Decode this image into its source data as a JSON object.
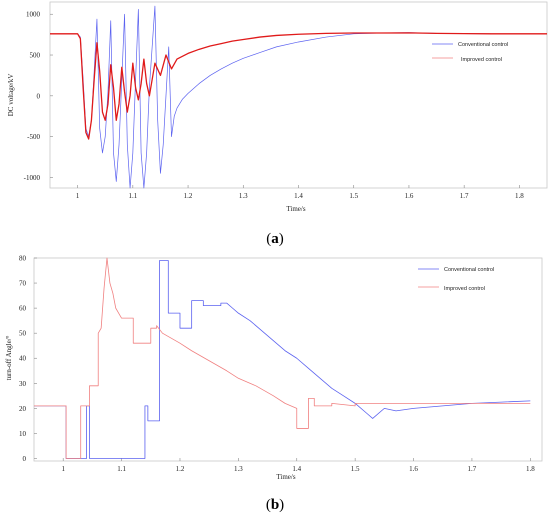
{
  "chart_data": [
    {
      "type": "line",
      "panel_label_text": "(a)",
      "panel_label_letter": "a",
      "xlabel": "Time/s",
      "ylabel": "DC voltage/kV",
      "xlim": [
        0.95,
        1.85
      ],
      "ylim": [
        -1130,
        1150
      ],
      "xticks": [
        1,
        1.1,
        1.2,
        1.3,
        1.4,
        1.5,
        1.6,
        1.7,
        1.8
      ],
      "xtick_labels": [
        "1",
        "1.1",
        "1.2",
        "1.3",
        "1.4",
        "1.5",
        "1.6",
        "1.7",
        "1.8"
      ],
      "yticks": [
        1000,
        500,
        0,
        -500,
        -1000
      ],
      "ytick_labels": [
        "1000",
        "500",
        "0",
        "-500",
        "-1000"
      ],
      "grid": false,
      "legend_position": "top-right",
      "series": [
        {
          "name": "Conventional control",
          "color": "#5b62f0",
          "points": [
            [
              0.95,
              760
            ],
            [
              1.0,
              760
            ],
            [
              1.005,
              720
            ],
            [
              1.01,
              200
            ],
            [
              1.015,
              -400
            ],
            [
              1.02,
              -500
            ],
            [
              1.025,
              -300
            ],
            [
              1.03,
              300
            ],
            [
              1.035,
              940
            ],
            [
              1.04,
              -400
            ],
            [
              1.045,
              -700
            ],
            [
              1.05,
              -500
            ],
            [
              1.055,
              50
            ],
            [
              1.06,
              920
            ],
            [
              1.065,
              -700
            ],
            [
              1.07,
              -1050
            ],
            [
              1.075,
              -600
            ],
            [
              1.08,
              200
            ],
            [
              1.085,
              1000
            ],
            [
              1.09,
              -600
            ],
            [
              1.095,
              -1130
            ],
            [
              1.1,
              -700
            ],
            [
              1.105,
              200
            ],
            [
              1.11,
              1060
            ],
            [
              1.115,
              -700
            ],
            [
              1.12,
              -1130
            ],
            [
              1.125,
              -700
            ],
            [
              1.13,
              100
            ],
            [
              1.14,
              1100
            ],
            [
              1.145,
              -300
            ],
            [
              1.15,
              -950
            ],
            [
              1.155,
              -600
            ],
            [
              1.16,
              0
            ],
            [
              1.165,
              600
            ],
            [
              1.17,
              -500
            ],
            [
              1.175,
              -250
            ],
            [
              1.18,
              -150
            ],
            [
              1.19,
              -40
            ],
            [
              1.2,
              30
            ],
            [
              1.22,
              150
            ],
            [
              1.24,
              250
            ],
            [
              1.26,
              330
            ],
            [
              1.28,
              400
            ],
            [
              1.3,
              460
            ],
            [
              1.33,
              530
            ],
            [
              1.36,
              600
            ],
            [
              1.4,
              660
            ],
            [
              1.45,
              720
            ],
            [
              1.5,
              760
            ],
            [
              1.55,
              770
            ],
            [
              1.6,
              775
            ],
            [
              1.65,
              765
            ],
            [
              1.7,
              762
            ],
            [
              1.75,
              760
            ],
            [
              1.8,
              760
            ],
            [
              1.85,
              760
            ]
          ]
        },
        {
          "name": "Improved control",
          "color": "#e01a1a",
          "points": [
            [
              0.95,
              760
            ],
            [
              1.0,
              760
            ],
            [
              1.005,
              700
            ],
            [
              1.01,
              100
            ],
            [
              1.015,
              -450
            ],
            [
              1.02,
              -530
            ],
            [
              1.025,
              -300
            ],
            [
              1.03,
              200
            ],
            [
              1.035,
              650
            ],
            [
              1.04,
              300
            ],
            [
              1.045,
              -200
            ],
            [
              1.05,
              -300
            ],
            [
              1.055,
              -100
            ],
            [
              1.06,
              380
            ],
            [
              1.065,
              100
            ],
            [
              1.07,
              -300
            ],
            [
              1.075,
              -100
            ],
            [
              1.08,
              350
            ],
            [
              1.085,
              50
            ],
            [
              1.09,
              -200
            ],
            [
              1.095,
              0
            ],
            [
              1.1,
              400
            ],
            [
              1.105,
              100
            ],
            [
              1.11,
              -50
            ],
            [
              1.115,
              150
            ],
            [
              1.12,
              450
            ],
            [
              1.125,
              150
            ],
            [
              1.13,
              0
            ],
            [
              1.14,
              400
            ],
            [
              1.15,
              250
            ],
            [
              1.16,
              500
            ],
            [
              1.17,
              330
            ],
            [
              1.18,
              450
            ],
            [
              1.2,
              520
            ],
            [
              1.22,
              570
            ],
            [
              1.24,
              610
            ],
            [
              1.26,
              640
            ],
            [
              1.28,
              670
            ],
            [
              1.3,
              690
            ],
            [
              1.33,
              720
            ],
            [
              1.36,
              740
            ],
            [
              1.4,
              755
            ],
            [
              1.45,
              765
            ],
            [
              1.5,
              770
            ],
            [
              1.55,
              770
            ],
            [
              1.6,
              772
            ],
            [
              1.65,
              765
            ],
            [
              1.7,
              762
            ],
            [
              1.75,
              760
            ],
            [
              1.8,
              760
            ],
            [
              1.85,
              760
            ]
          ]
        }
      ]
    },
    {
      "type": "line",
      "panel_label_text": "(b)",
      "panel_label_letter": "b",
      "xlabel": "Time/s",
      "ylabel": "turn-off Angle/°",
      "xlim": [
        0.95,
        1.82
      ],
      "ylim": [
        -1,
        80
      ],
      "xticks": [
        1,
        1.1,
        1.2,
        1.3,
        1.4,
        1.5,
        1.6,
        1.7,
        1.8
      ],
      "xtick_labels": [
        "1",
        "1.1",
        "1.2",
        "1.3",
        "1.4",
        "1.5",
        "1.6",
        "1.7",
        "1.8"
      ],
      "yticks": [
        0,
        10,
        20,
        30,
        40,
        50,
        60,
        70,
        80
      ],
      "ytick_labels": [
        "0",
        "10",
        "20",
        "30",
        "40",
        "50",
        "60",
        "70",
        "80"
      ],
      "grid": false,
      "legend_position": "top-right",
      "series": [
        {
          "name": "Conventional control",
          "color": "#5b62f0",
          "points": [
            [
              0.95,
              21
            ],
            [
              1.0,
              21
            ],
            [
              1.005,
              21
            ],
            [
              1.005,
              0
            ],
            [
              1.04,
              0
            ],
            [
              1.04,
              21
            ],
            [
              1.045,
              21
            ],
            [
              1.045,
              0
            ],
            [
              1.14,
              0
            ],
            [
              1.14,
              21
            ],
            [
              1.145,
              21
            ],
            [
              1.145,
              15
            ],
            [
              1.165,
              15
            ],
            [
              1.165,
              79
            ],
            [
              1.18,
              79
            ],
            [
              1.18,
              58
            ],
            [
              1.2,
              58
            ],
            [
              1.2,
              52
            ],
            [
              1.22,
              52
            ],
            [
              1.22,
              63
            ],
            [
              1.24,
              63
            ],
            [
              1.24,
              61
            ],
            [
              1.27,
              61
            ],
            [
              1.27,
              62
            ],
            [
              1.28,
              62
            ],
            [
              1.29,
              60
            ],
            [
              1.3,
              58
            ],
            [
              1.32,
              55
            ],
            [
              1.34,
              51
            ],
            [
              1.36,
              47
            ],
            [
              1.38,
              43
            ],
            [
              1.4,
              40
            ],
            [
              1.42,
              36
            ],
            [
              1.44,
              32
            ],
            [
              1.46,
              28
            ],
            [
              1.48,
              25
            ],
            [
              1.5,
              22
            ],
            [
              1.52,
              18
            ],
            [
              1.53,
              16
            ],
            [
              1.55,
              20
            ],
            [
              1.57,
              19
            ],
            [
              1.6,
              20
            ],
            [
              1.65,
              21
            ],
            [
              1.7,
              22
            ],
            [
              1.75,
              22.5
            ],
            [
              1.8,
              23
            ]
          ]
        },
        {
          "name": "Improved control",
          "color": "#f08080",
          "points": [
            [
              0.95,
              21
            ],
            [
              1.0,
              21
            ],
            [
              1.005,
              21
            ],
            [
              1.005,
              0
            ],
            [
              1.03,
              0
            ],
            [
              1.03,
              21
            ],
            [
              1.045,
              21
            ],
            [
              1.045,
              29
            ],
            [
              1.06,
              29
            ],
            [
              1.06,
              50
            ],
            [
              1.065,
              52
            ],
            [
              1.07,
              68
            ],
            [
              1.075,
              80
            ],
            [
              1.08,
              70
            ],
            [
              1.085,
              66
            ],
            [
              1.09,
              60
            ],
            [
              1.095,
              58
            ],
            [
              1.1,
              56
            ],
            [
              1.12,
              56
            ],
            [
              1.12,
              46
            ],
            [
              1.15,
              46
            ],
            [
              1.15,
              52
            ],
            [
              1.16,
              52
            ],
            [
              1.16,
              53
            ],
            [
              1.17,
              50
            ],
            [
              1.2,
              46
            ],
            [
              1.22,
              43
            ],
            [
              1.25,
              39
            ],
            [
              1.28,
              35
            ],
            [
              1.3,
              32
            ],
            [
              1.33,
              29
            ],
            [
              1.36,
              25
            ],
            [
              1.38,
              22
            ],
            [
              1.4,
              20
            ],
            [
              1.4,
              12
            ],
            [
              1.42,
              12
            ],
            [
              1.42,
              24
            ],
            [
              1.43,
              24
            ],
            [
              1.43,
              21
            ],
            [
              1.46,
              21
            ],
            [
              1.46,
              22
            ],
            [
              1.5,
              21
            ],
            [
              1.5,
              22
            ],
            [
              1.55,
              22
            ],
            [
              1.6,
              22
            ],
            [
              1.65,
              22
            ],
            [
              1.7,
              22
            ],
            [
              1.75,
              22
            ],
            [
              1.8,
              22
            ]
          ]
        }
      ]
    }
  ]
}
